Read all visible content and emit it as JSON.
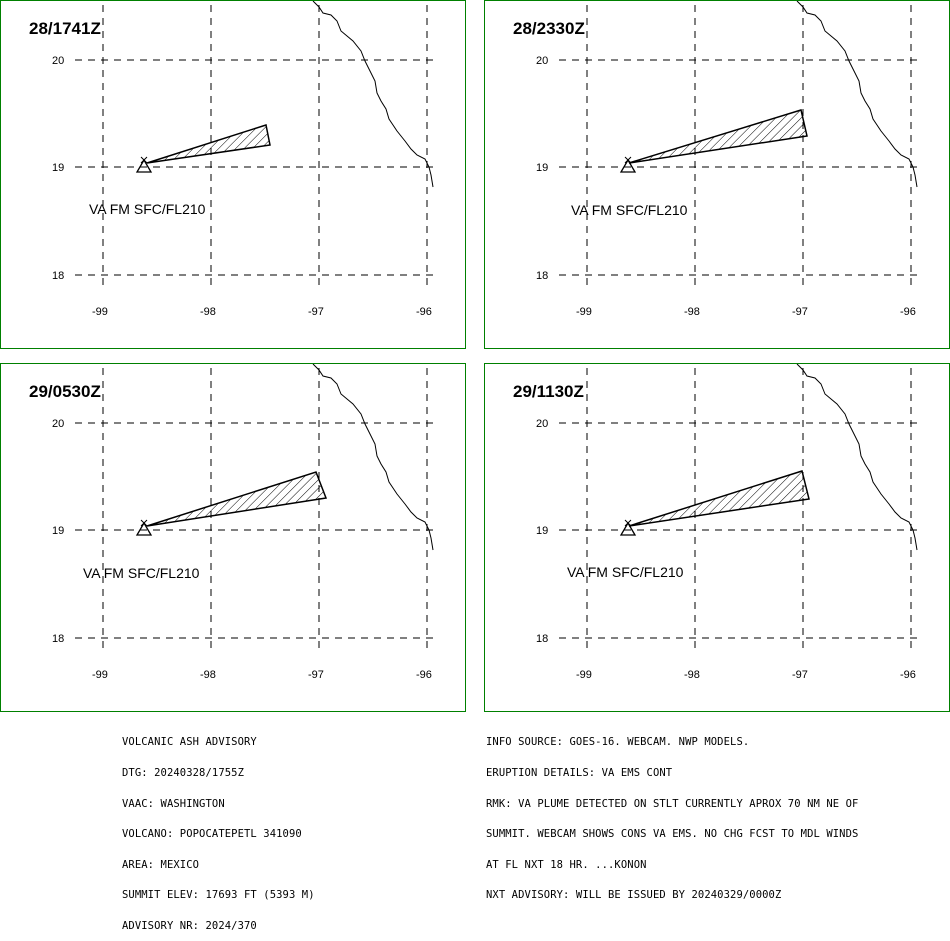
{
  "panels": [
    {
      "title": "28/1741Z",
      "label": "VA FM SFC/FL210"
    },
    {
      "title": "28/2330Z",
      "label": "VA FM SFC/FL210"
    },
    {
      "title": "29/0530Z",
      "label": "VA FM SFC/FL210"
    },
    {
      "title": "29/1130Z",
      "label": "VA FM SFC/FL210"
    }
  ],
  "axis": {
    "lon_labels": [
      "-99",
      "-98",
      "-97",
      "-96"
    ],
    "lat_labels": [
      "20",
      "19",
      "18"
    ]
  },
  "advisory": {
    "lines": [
      "VOLCANIC ASH ADVISORY",
      "DTG: 20240328/1755Z",
      "VAAC: WASHINGTON",
      "VOLCANO: POPOCATEPETL 341090",
      "AREA: MEXICO",
      "SUMMIT ELEV: 17693 FT (5393 M)",
      "ADVISORY NR: 2024/370"
    ]
  },
  "info": {
    "lines": [
      "INFO SOURCE: GOES-16. WEBCAM. NWP MODELS.",
      "ERUPTION DETAILS: VA EMS CONT",
      "RMK: VA PLUME DETECTED ON STLT CURRENTLY APROX 70 NM NE OF",
      "SUMMIT. WEBCAM SHOWS CONS VA EMS. NO CHG FCST TO MDL WINDS",
      "AT FL NXT 18 HR. ...KONON",
      "NXT ADVISORY: WILL BE ISSUED BY 20240329/0000Z"
    ]
  },
  "colors": {
    "frame": "#008000",
    "lines": "#000000"
  }
}
